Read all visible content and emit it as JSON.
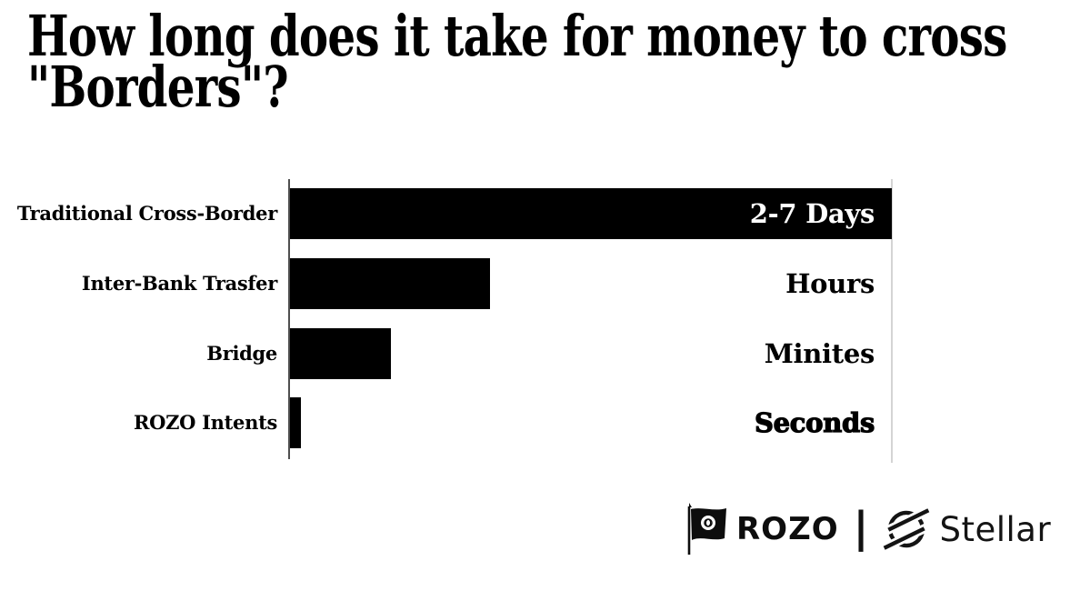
{
  "header": {
    "line1": "How long does it take for money to cross",
    "line2": "\"Borders\"?"
  },
  "chart_data": {
    "type": "bar",
    "orientation": "horizontal",
    "title": "How long does it take for money to cross \"Borders\"?",
    "xlabel": "",
    "ylabel": "",
    "grid": false,
    "legend": false,
    "categories": [
      "Traditional Cross-Border",
      "Inter-Bank Trasfer",
      "Bridge",
      "ROZO Intents"
    ],
    "value_labels": [
      "2-7 Days",
      "Hours",
      "Minites",
      "Seconds"
    ],
    "values_pct_of_axis": [
      100,
      33.3,
      16.7,
      1.8
    ],
    "value_label_inside_bar": [
      true,
      false,
      false,
      false
    ],
    "value_label_extra_bold": [
      false,
      false,
      false,
      true
    ],
    "bar_color": "#000000",
    "axis_color": "#4f4f4f",
    "plot_right_border_color": "#d4d4d4",
    "background_color": "#ffffff",
    "text_color": "#000000",
    "inside_label_color": "#ffffff"
  },
  "footer": {
    "brand_left": "ROZO",
    "divider": "|",
    "brand_right": "Stellar",
    "icons": {
      "left": "rozo-flag-icon",
      "right": "stellar-logo-icon"
    }
  }
}
